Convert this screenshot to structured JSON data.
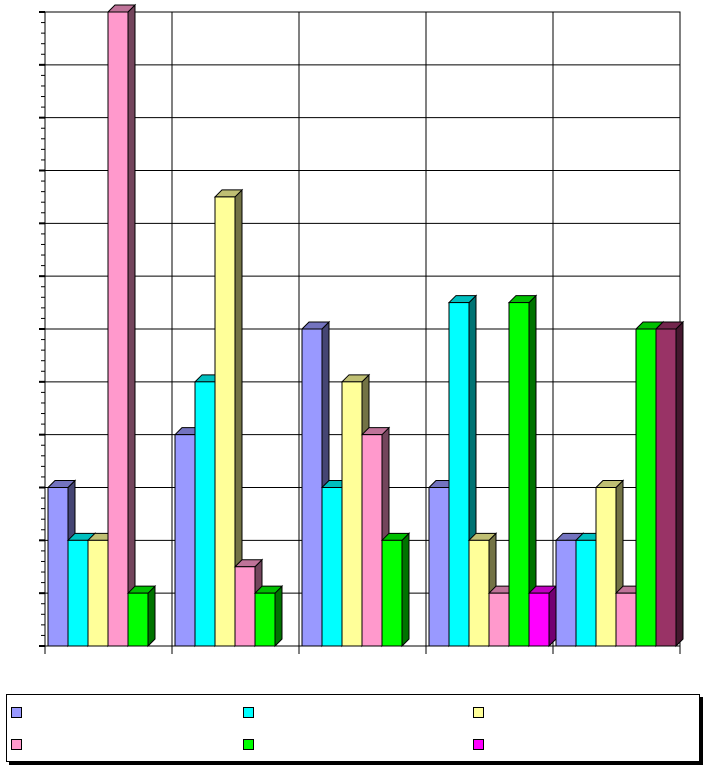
{
  "chart_data": {
    "type": "bar",
    "style": "3d-clustered",
    "categories": [
      "",
      "",
      "",
      "",
      ""
    ],
    "ylim": [
      0,
      12
    ],
    "grid": true,
    "legend_position": "bottom",
    "series": [
      {
        "name": "",
        "color": "#9999FF",
        "values": [
          3,
          4,
          6,
          3,
          2
        ]
      },
      {
        "name": "",
        "color": "#00FFFF",
        "values": [
          2,
          5,
          3,
          6.5,
          2
        ]
      },
      {
        "name": "",
        "color": "#FFFF99",
        "values": [
          2,
          8.5,
          5,
          2,
          3
        ]
      },
      {
        "name": "",
        "color": "#FF99CC",
        "values": [
          12,
          1.5,
          4,
          1,
          1
        ]
      },
      {
        "name": "",
        "color": "#00FF00",
        "values": [
          1,
          1,
          2,
          6.5,
          6
        ]
      },
      {
        "name": "",
        "color": "#FF00FF",
        "values": [
          0,
          0,
          0,
          1,
          0
        ]
      },
      {
        "name": "",
        "color": "#993366",
        "values": [
          0,
          0,
          0,
          0,
          6
        ]
      }
    ]
  }
}
